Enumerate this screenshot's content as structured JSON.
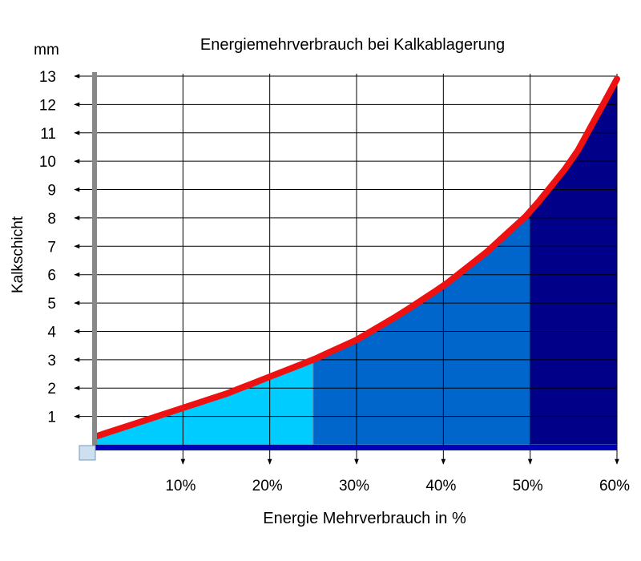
{
  "chart_data": {
    "type": "area",
    "title": "Energiemehrverbrauch bei Kalkablagerung",
    "y_unit": "mm",
    "ylabel": "Kalkschicht",
    "xlabel": "Energie Mehrverbrauch in %",
    "x_ticks": [
      "10%",
      "20%",
      "30%",
      "40%",
      "50%",
      "60%"
    ],
    "x_tick_values": [
      10,
      20,
      30,
      40,
      50,
      60
    ],
    "y_ticks": [
      "1",
      "2",
      "3",
      "4",
      "5",
      "6",
      "7",
      "8",
      "9",
      "10",
      "11",
      "12",
      "13"
    ],
    "y_tick_values": [
      1,
      2,
      3,
      4,
      5,
      6,
      7,
      8,
      9,
      10,
      11,
      12,
      13
    ],
    "xlim": [
      0,
      60
    ],
    "ylim": [
      0,
      13
    ],
    "grid": true,
    "series": [
      {
        "x": [
          0,
          5,
          10,
          15,
          20,
          25,
          30,
          35,
          40,
          45,
          50,
          55,
          60
        ],
        "y": [
          0.3,
          0.8,
          1.3,
          1.8,
          2.4,
          3.0,
          3.7,
          4.6,
          5.6,
          6.8,
          8.2,
          10.1,
          12.9
        ]
      }
    ],
    "band_boundaries": [
      0,
      25,
      50,
      60
    ],
    "colors": {
      "curve": "#ee1111",
      "band1": "#00ccff",
      "band2": "#0066cc",
      "band3": "#000088",
      "baseline": "#0000bb",
      "y_axis_bar": "#888888",
      "origin_box": "#cce0f0"
    }
  }
}
